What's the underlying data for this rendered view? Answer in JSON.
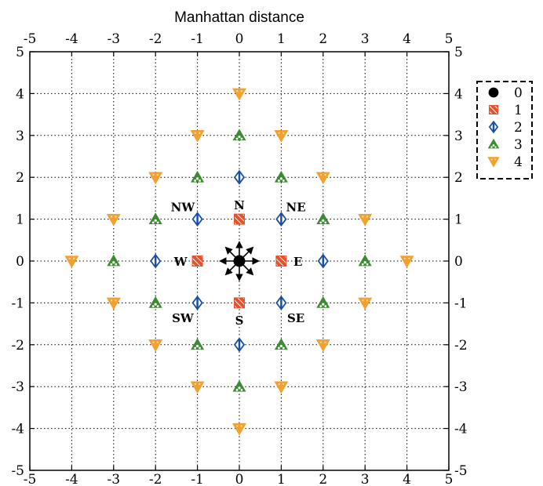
{
  "chart_data": {
    "type": "scatter",
    "title": "Manhattan distance",
    "xlabel": "",
    "ylabel": "",
    "xlim": [
      -5,
      5
    ],
    "ylim": [
      -5,
      5
    ],
    "xticks": [
      "-5",
      "-4",
      "-3",
      "-2",
      "-1",
      "0",
      "1",
      "2",
      "3",
      "4",
      "5"
    ],
    "yticks": [
      "5",
      "4",
      "3",
      "2",
      "1",
      "0",
      "-1",
      "-2",
      "-3",
      "-4",
      "-5"
    ],
    "grid": true,
    "legend_position": "outside-top-right",
    "series": [
      {
        "name": "0",
        "marker": "circle",
        "color": "#000000",
        "points": [
          [
            0,
            0
          ]
        ]
      },
      {
        "name": "1",
        "marker": "hatched-square",
        "color": "#e8502a",
        "points": [
          [
            0,
            1
          ],
          [
            -1,
            0
          ],
          [
            1,
            0
          ],
          [
            0,
            -1
          ]
        ]
      },
      {
        "name": "2",
        "marker": "diamond",
        "color": "#1a4fa0",
        "points": [
          [
            0,
            2
          ],
          [
            -1,
            1
          ],
          [
            1,
            1
          ],
          [
            -2,
            0
          ],
          [
            2,
            0
          ],
          [
            -1,
            -1
          ],
          [
            1,
            -1
          ],
          [
            0,
            -2
          ]
        ]
      },
      {
        "name": "3",
        "marker": "triangle-up",
        "color": "#3c8a32",
        "points": [
          [
            0,
            3
          ],
          [
            -1,
            2
          ],
          [
            1,
            2
          ],
          [
            -2,
            1
          ],
          [
            2,
            1
          ],
          [
            -3,
            0
          ],
          [
            3,
            0
          ],
          [
            -2,
            -1
          ],
          [
            2,
            -1
          ],
          [
            -1,
            -2
          ],
          [
            1,
            -2
          ],
          [
            0,
            -3
          ]
        ]
      },
      {
        "name": "4",
        "marker": "triangle-down",
        "color": "#f2a030",
        "points": [
          [
            0,
            4
          ],
          [
            -1,
            3
          ],
          [
            1,
            3
          ],
          [
            -2,
            2
          ],
          [
            2,
            2
          ],
          [
            -3,
            1
          ],
          [
            3,
            1
          ],
          [
            -4,
            0
          ],
          [
            4,
            0
          ],
          [
            -3,
            -1
          ],
          [
            3,
            -1
          ],
          [
            -2,
            -2
          ],
          [
            2,
            -2
          ],
          [
            -1,
            -3
          ],
          [
            1,
            -3
          ],
          [
            0,
            -4
          ]
        ]
      }
    ],
    "annotations": [
      {
        "text": "N",
        "x": 0,
        "y": 1.35
      },
      {
        "text": "S",
        "x": 0,
        "y": -1.4
      },
      {
        "text": "E",
        "x": 1.4,
        "y": 0
      },
      {
        "text": "W",
        "x": -1.4,
        "y": 0
      },
      {
        "text": "NE",
        "x": 1.35,
        "y": 1.3
      },
      {
        "text": "NW",
        "x": -1.35,
        "y": 1.3
      },
      {
        "text": "SE",
        "x": 1.35,
        "y": -1.35
      },
      {
        "text": "SW",
        "x": -1.35,
        "y": -1.35
      }
    ]
  }
}
